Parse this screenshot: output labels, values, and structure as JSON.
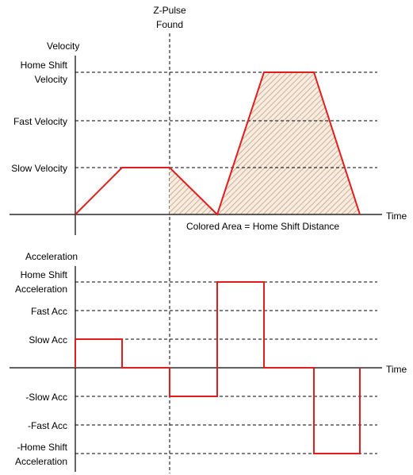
{
  "colors": {
    "profile": "#e01e1e",
    "hatch": "#c8a07a"
  },
  "marker": {
    "line1": "Z-Pulse",
    "line2": "Found"
  },
  "velocity": {
    "title": "Velocity",
    "axis_label": "Time",
    "levels": {
      "home_shift_line1": "Home Shift",
      "home_shift_line2": "Velocity",
      "fast": "Fast Velocity",
      "slow": "Slow Velocity"
    },
    "note": "Colored Area = Home Shift Distance"
  },
  "acceleration": {
    "title": "Acceleration",
    "axis_label": "Time",
    "levels": {
      "home_shift_line1": "Home Shift",
      "home_shift_line2": "Acceleration",
      "fast": "Fast Acc",
      "slow": "Slow Acc",
      "neg_slow": "-Slow Acc",
      "neg_fast": "-Fast Acc",
      "neg_home_shift_line1": "-Home Shift",
      "neg_home_shift_line2": "Acceleration"
    }
  }
}
